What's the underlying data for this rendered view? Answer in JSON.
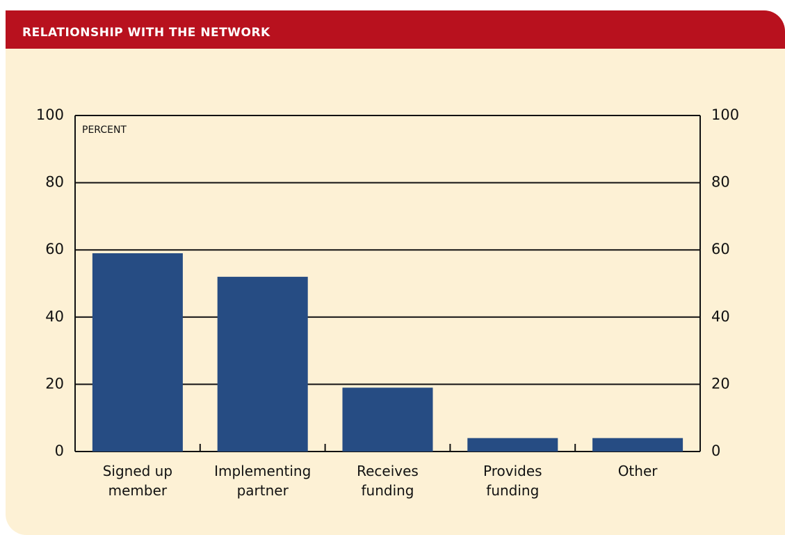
{
  "chart_data": {
    "type": "bar",
    "title": "RELATIONSHIP WITH THE NETWORK",
    "y_label": "PERCENT",
    "categories": [
      "Signed up member",
      "Implementing partner",
      "Receives funding",
      "Provides funding",
      "Other"
    ],
    "values": [
      59,
      52,
      19,
      4,
      4
    ],
    "color": "#264c83",
    "ylim": [
      0,
      100
    ],
    "yticks": [
      0,
      20,
      40,
      60,
      80,
      100
    ],
    "grid": true
  }
}
